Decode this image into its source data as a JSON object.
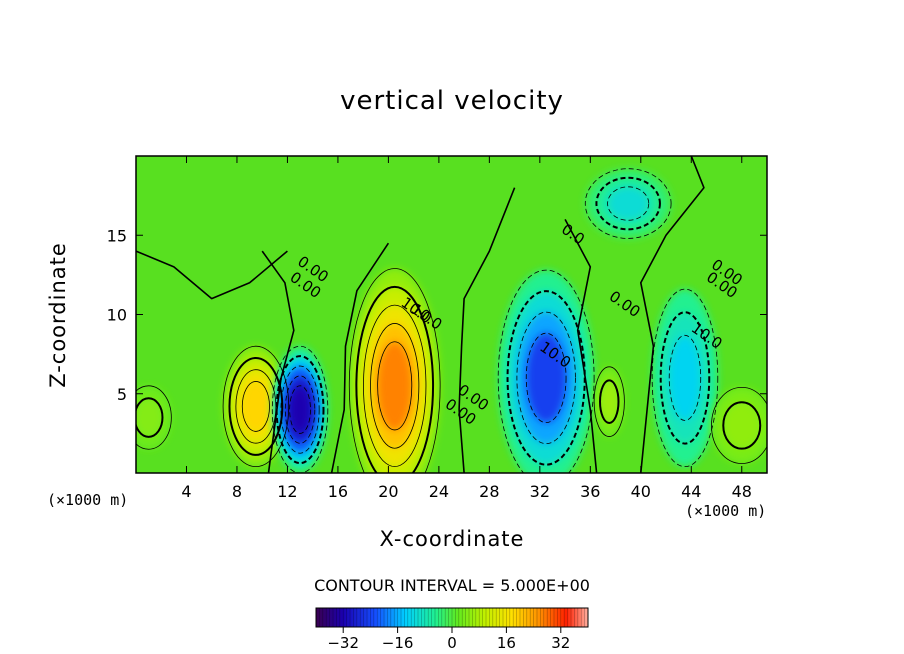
{
  "title": "vertical velocity",
  "chart_data": {
    "type": "heatmap",
    "title": "vertical velocity",
    "xlabel": "X-coordinate",
    "ylabel": "Z-coordinate",
    "x_unit": "(×1000 m)",
    "xlim": [
      0,
      50
    ],
    "ylim": [
      0,
      20
    ],
    "x_ticks": [
      4,
      8,
      12,
      16,
      20,
      24,
      28,
      32,
      36,
      40,
      44,
      48
    ],
    "y_ticks": [
      5,
      10,
      15
    ],
    "contour_interval_text": "CONTOUR INTERVAL = 5.000E+00",
    "contour_labels": [
      "10.0",
      "10.0",
      "10.0",
      "10.0",
      "0.00",
      "0.00",
      "0.0",
      "0.00",
      "0.00",
      "0.00",
      "0.00",
      "0.00"
    ],
    "colorbar": {
      "ticks": [
        -32,
        -16,
        0,
        16,
        32
      ],
      "range": [
        -40,
        40
      ]
    },
    "cells": [
      {
        "x": 9.5,
        "z": 4.2,
        "value": 18
      },
      {
        "x": 13.0,
        "z": 4.0,
        "value": -32
      },
      {
        "x": 20.5,
        "z": 5.5,
        "value": 26
      },
      {
        "x": 32.5,
        "z": 6.0,
        "value": -24
      },
      {
        "x": 43.5,
        "z": 6.0,
        "value": -12
      },
      {
        "x": 48.0,
        "z": 3.0,
        "value": 5
      },
      {
        "x": 1.0,
        "z": 3.5,
        "value": 4
      },
      {
        "x": 37.5,
        "z": 4.5,
        "value": 6
      },
      {
        "x": 39.0,
        "z": 17.0,
        "value": -10
      }
    ]
  }
}
